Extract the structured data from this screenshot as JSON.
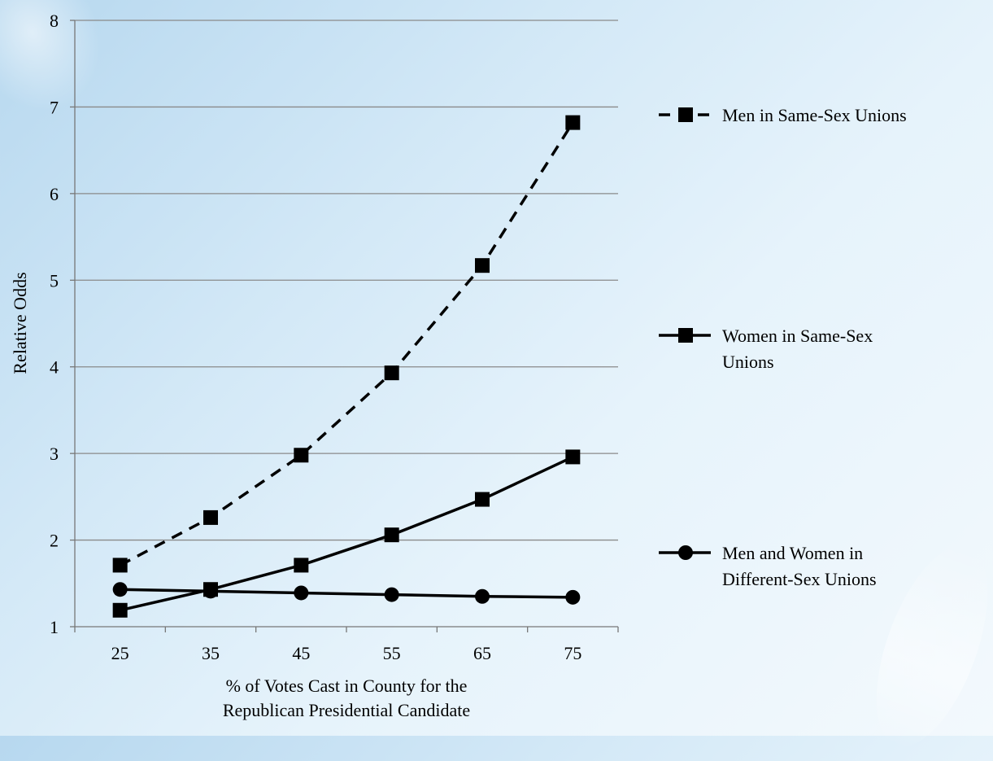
{
  "chart_data": {
    "type": "line",
    "title": "",
    "xlabel": [
      "% of Votes Cast in County for the",
      "Republican Presidential Candidate"
    ],
    "ylabel": "Relative Odds",
    "x": [
      25,
      35,
      45,
      55,
      65,
      75
    ],
    "xlim": [
      20,
      80
    ],
    "ylim": [
      1,
      8
    ],
    "yticks": [
      1,
      2,
      3,
      4,
      5,
      6,
      7,
      8
    ],
    "grid": "horizontal",
    "legend_position": "right",
    "series": [
      {
        "name": "Men in Same-Sex Unions",
        "values": [
          1.71,
          2.26,
          2.98,
          3.93,
          5.17,
          6.82
        ],
        "marker": "square",
        "dash": "dashed",
        "color": "#000000"
      },
      {
        "name": "Women in Same-Sex Unions",
        "values": [
          1.19,
          1.43,
          1.71,
          2.06,
          2.47,
          2.96
        ],
        "marker": "square",
        "dash": "solid",
        "color": "#000000"
      },
      {
        "name": "Men and Women in Different-Sex Unions",
        "values": [
          1.43,
          1.41,
          1.39,
          1.37,
          1.35,
          1.34
        ],
        "marker": "circle",
        "dash": "solid",
        "color": "#000000"
      }
    ],
    "legend_lines": [
      [
        "Men in Same-Sex Unions"
      ],
      [
        "Women in Same-Sex",
        "Unions"
      ],
      [
        "Men and Women in",
        "Different-Sex Unions"
      ]
    ]
  }
}
